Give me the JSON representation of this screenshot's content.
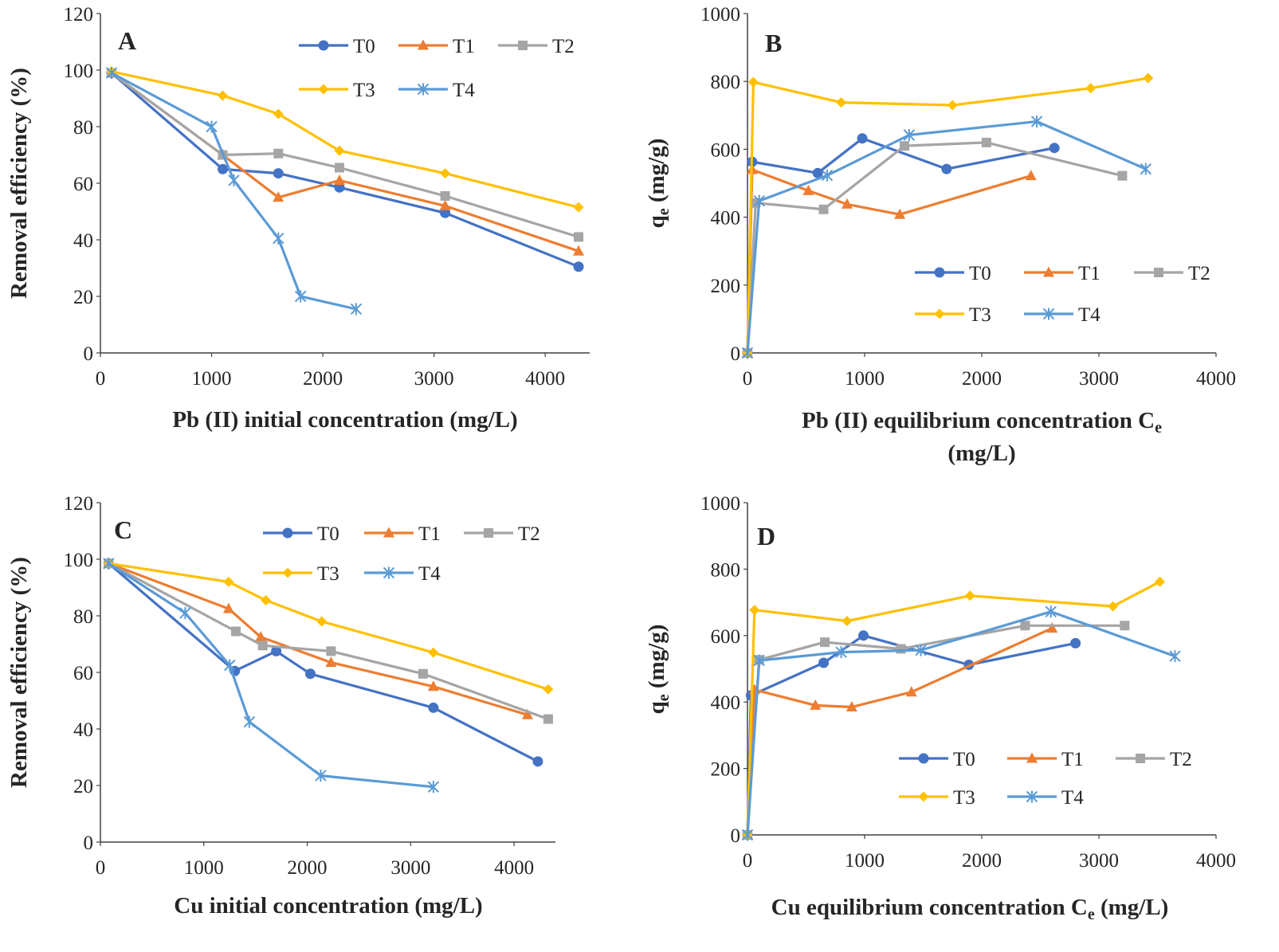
{
  "colors": {
    "T0": "#4472C4",
    "T1": "#ED7D31",
    "T2": "#A5A5A5",
    "T3": "#FFC000",
    "T4": "#5B9BD5",
    "axis": "#404040",
    "text": "#262626"
  },
  "chart_data": [
    {
      "type": "line",
      "panel_label": "A",
      "xlabel": "Pb (II) initial concentration (mg/L)",
      "xlabel_sub": "",
      "xlabel_line2": "",
      "ylabel": "Removal efficiency (%)",
      "ylabel_sub": "",
      "ylabel_tail": "",
      "xlim": [
        0,
        4400
      ],
      "ylim": [
        0,
        120
      ],
      "xticks": [
        "0",
        "1000",
        "2000",
        "3000",
        "4000"
      ],
      "xtick_values": [
        0,
        1000,
        2000,
        3000,
        4000
      ],
      "yticks": [
        "0",
        "20",
        "40",
        "60",
        "80",
        "100",
        "120"
      ],
      "ytick_values": [
        0,
        20,
        40,
        60,
        80,
        100,
        120
      ],
      "legend_position": "top-right",
      "series": [
        {
          "name": "T0",
          "marker": "circle",
          "x": [
            100,
            1100,
            1600,
            2150,
            3100,
            4300
          ],
          "y": [
            99,
            65,
            63.5,
            58.5,
            49.5,
            30.5
          ]
        },
        {
          "name": "T1",
          "marker": "triangle",
          "x": [
            100,
            1100,
            1600,
            2150,
            3100,
            4300
          ],
          "y": [
            99,
            70,
            55,
            61,
            52,
            36
          ]
        },
        {
          "name": "T2",
          "marker": "square",
          "x": [
            100,
            1100,
            1600,
            2150,
            3100,
            4300
          ],
          "y": [
            99,
            70,
            70.5,
            65.5,
            55.5,
            41
          ]
        },
        {
          "name": "T3",
          "marker": "diamond",
          "x": [
            100,
            1100,
            1600,
            2150,
            3100,
            4300
          ],
          "y": [
            99.5,
            91,
            84.5,
            71.5,
            63.5,
            51.5
          ]
        },
        {
          "name": "T4",
          "marker": "star",
          "x": [
            100,
            1000,
            1200,
            1600,
            1800,
            2300
          ],
          "y": [
            99,
            80,
            61,
            40.5,
            20,
            15.5
          ]
        }
      ]
    },
    {
      "type": "line",
      "panel_label": "B",
      "xlabel": "Pb (II) equilibrium concentration C",
      "xlabel_sub": "e",
      "xlabel_line2": "(mg/L)",
      "ylabel": "q",
      "ylabel_sub": "e",
      "ylabel_tail": " (mg/g)",
      "xlim": [
        0,
        4000
      ],
      "ylim": [
        0,
        1000
      ],
      "xticks": [
        "0",
        "1000",
        "2000",
        "3000",
        "4000"
      ],
      "xtick_values": [
        0,
        1000,
        2000,
        3000,
        4000
      ],
      "yticks": [
        "0",
        "200",
        "400",
        "600",
        "800",
        "1000"
      ],
      "ytick_values": [
        0,
        200,
        400,
        600,
        800,
        1000
      ],
      "legend_position": "bottom-right",
      "series": [
        {
          "name": "T0",
          "marker": "circle",
          "x": [
            0,
            40,
            600,
            980,
            1700,
            2620
          ],
          "y": [
            0,
            563,
            530,
            632,
            542,
            604
          ]
        },
        {
          "name": "T1",
          "marker": "triangle",
          "x": [
            0,
            40,
            520,
            850,
            1300,
            2420
          ],
          "y": [
            0,
            540,
            478,
            438,
            408,
            522
          ]
        },
        {
          "name": "T2",
          "marker": "square",
          "x": [
            0,
            70,
            650,
            1340,
            2040,
            3200
          ],
          "y": [
            0,
            442,
            423,
            610,
            620,
            522
          ]
        },
        {
          "name": "T3",
          "marker": "diamond",
          "x": [
            0,
            50,
            800,
            1750,
            2930,
            3420
          ],
          "y": [
            0,
            798,
            738,
            730,
            780,
            810
          ]
        },
        {
          "name": "T4",
          "marker": "star",
          "x": [
            0,
            100,
            680,
            1380,
            2470,
            3400
          ],
          "y": [
            0,
            448,
            523,
            642,
            682,
            542
          ]
        }
      ]
    },
    {
      "type": "line",
      "panel_label": "C",
      "xlabel": "Cu initial concentration (mg/L)",
      "xlabel_sub": "",
      "xlabel_line2": "",
      "ylabel": "Removal efficiency (%)",
      "ylabel_sub": "",
      "ylabel_tail": "",
      "xlim": [
        0,
        4400
      ],
      "ylim": [
        0,
        120
      ],
      "xticks": [
        "0",
        "1000",
        "2000",
        "3000",
        "4000"
      ],
      "xtick_values": [
        0,
        1000,
        2000,
        3000,
        4000
      ],
      "yticks": [
        "0",
        "20",
        "40",
        "60",
        "80",
        "100",
        "120"
      ],
      "ytick_values": [
        0,
        20,
        40,
        60,
        80,
        100,
        120
      ],
      "legend_position": "top-right",
      "series": [
        {
          "name": "T0",
          "marker": "circle",
          "x": [
            80,
            1300,
            1700,
            2030,
            3220,
            4230
          ],
          "y": [
            98.5,
            60.5,
            67.5,
            59.5,
            47.5,
            28.5
          ]
        },
        {
          "name": "T1",
          "marker": "triangle",
          "x": [
            80,
            1240,
            1550,
            2230,
            3220,
            4130
          ],
          "y": [
            98.5,
            82.5,
            72.5,
            63.5,
            55,
            45
          ]
        },
        {
          "name": "T2",
          "marker": "square",
          "x": [
            80,
            1310,
            1570,
            2230,
            3120,
            4330
          ],
          "y": [
            98.5,
            74.5,
            69.5,
            67.5,
            59.5,
            43.5
          ]
        },
        {
          "name": "T3",
          "marker": "diamond",
          "x": [
            80,
            1240,
            1600,
            2140,
            3220,
            4330
          ],
          "y": [
            98.5,
            92,
            85.5,
            78,
            67,
            54
          ]
        },
        {
          "name": "T4",
          "marker": "star",
          "x": [
            80,
            820,
            1250,
            1440,
            2130,
            3220
          ],
          "y": [
            98.5,
            81,
            62.5,
            42.5,
            23.5,
            19.5
          ]
        }
      ]
    },
    {
      "type": "line",
      "panel_label": "D",
      "xlabel": "Cu equilibrium concentration C",
      "xlabel_sub": "e",
      "xlabel_line2": "(mg/L)",
      "xlabel_inline": true,
      "ylabel": "q",
      "ylabel_sub": "e",
      "ylabel_tail": " (mg/g)",
      "xlim": [
        0,
        4000
      ],
      "ylim": [
        0,
        1000
      ],
      "xticks": [
        "0",
        "1000",
        "2000",
        "3000",
        "4000"
      ],
      "xtick_values": [
        0,
        1000,
        2000,
        3000,
        4000
      ],
      "yticks": [
        "0",
        "200",
        "400",
        "600",
        "800",
        "1000"
      ],
      "ytick_values": [
        0,
        200,
        400,
        600,
        800,
        1000
      ],
      "legend_position": "bottom-right",
      "series": [
        {
          "name": "T0",
          "marker": "circle",
          "x": [
            0,
            30,
            650,
            990,
            1890,
            2800
          ],
          "y": [
            0,
            420,
            518,
            600,
            512,
            577
          ]
        },
        {
          "name": "T1",
          "marker": "triangle",
          "x": [
            0,
            60,
            580,
            890,
            1400,
            2600
          ],
          "y": [
            0,
            437,
            390,
            385,
            430,
            622
          ]
        },
        {
          "name": "T2",
          "marker": "square",
          "x": [
            0,
            100,
            660,
            1310,
            2370,
            3220
          ],
          "y": [
            0,
            527,
            580,
            560,
            630,
            630
          ]
        },
        {
          "name": "T3",
          "marker": "diamond",
          "x": [
            0,
            60,
            850,
            1900,
            3120,
            3520
          ],
          "y": [
            0,
            677,
            644,
            720,
            688,
            762
          ]
        },
        {
          "name": "T4",
          "marker": "star",
          "x": [
            0,
            100,
            800,
            1480,
            2590,
            3650
          ],
          "y": [
            0,
            525,
            550,
            556,
            672,
            538
          ]
        }
      ]
    }
  ]
}
